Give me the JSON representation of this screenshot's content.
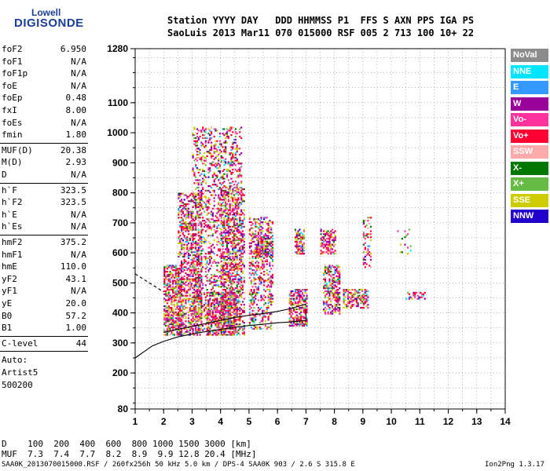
{
  "logo": {
    "line1": "Lowell",
    "line2": "DIGISONDE"
  },
  "header": {
    "row1": "Station YYYY DAY   DDD HHMMSS P1  FFS S AXN PPS IGA PS",
    "row2": "SaoLuis 2013 Mar11 070 015000 RSF 005 2 713 100 10+ 22"
  },
  "params_group1": [
    {
      "name": "foF2",
      "value": "6.950"
    },
    {
      "name": "foF1",
      "value": "N/A"
    },
    {
      "name": "foF1p",
      "value": "N/A"
    },
    {
      "name": "foE",
      "value": "N/A"
    },
    {
      "name": "foEp",
      "value": "0.48"
    },
    {
      "name": "fxI",
      "value": "8.00"
    },
    {
      "name": "foEs",
      "value": "N/A"
    },
    {
      "name": "fmin",
      "value": "1.80"
    }
  ],
  "params_group2": [
    {
      "name": "MUF(D)",
      "value": "20.38"
    },
    {
      "name": "M(D)",
      "value": "2.93"
    },
    {
      "name": "D",
      "value": "N/A"
    }
  ],
  "params_group3": [
    {
      "name": "h`F",
      "value": "323.5"
    },
    {
      "name": "h`F2",
      "value": "323.5"
    },
    {
      "name": "h`E",
      "value": "N/A"
    },
    {
      "name": "h`Es",
      "value": "N/A"
    }
  ],
  "params_group4": [
    {
      "name": "hmF2",
      "value": "375.2"
    },
    {
      "name": "hmF1",
      "value": "N/A"
    },
    {
      "name": "hmE",
      "value": "110.0"
    },
    {
      "name": "yF2",
      "value": "43.1"
    },
    {
      "name": "yF1",
      "value": "N/A"
    },
    {
      "name": "yE",
      "value": "20.0"
    },
    {
      "name": "B0",
      "value": "57.2"
    },
    {
      "name": "B1",
      "value": "1.00"
    }
  ],
  "clevel": {
    "name": "C-level",
    "value": "44"
  },
  "autoscale": {
    "line1": "Auto:",
    "line2": "Artist5",
    "line3": "500200"
  },
  "legend": [
    {
      "label": "NoVal",
      "color": "#8c8c8c"
    },
    {
      "label": "NNE",
      "color": "#00e5ff"
    },
    {
      "label": "E",
      "color": "#3399ff"
    },
    {
      "label": "W",
      "color": "#990099"
    },
    {
      "label": "Vo-",
      "color": "#ff3399"
    },
    {
      "label": "Vo+",
      "color": "#ff0033"
    },
    {
      "label": "SSW",
      "color": "#ffaaaa"
    },
    {
      "label": "X-",
      "color": "#007700"
    },
    {
      "label": "X+",
      "color": "#66bb44"
    },
    {
      "label": "SSE",
      "color": "#cccc00"
    },
    {
      "label": "NNW",
      "color": "#2200cc"
    }
  ],
  "footer": {
    "d_line": "D    100  200  400  600  800 1000 1500 3000 [km]",
    "muf_line": "MUF  7.3  7.4  7.7  8.2  8.9  9.9 12.8 20.4 [MHz]",
    "file_line": "SAA0K_2013070015000.RSF / 260fx256h 50 kHz 5.0 km / DPS-4 SAA0K 903 / 2.6 S 315.8 E",
    "version": "Ion2Png 1.3.17"
  },
  "chart_data": {
    "type": "scatter",
    "xlim": [
      1,
      14
    ],
    "ylim": [
      80,
      1280
    ],
    "x_ticks": [
      1,
      2,
      3,
      4,
      5,
      6,
      7,
      8,
      9,
      10,
      11,
      12,
      13,
      14
    ],
    "y_ticks": [
      80,
      200,
      300,
      400,
      500,
      600,
      700,
      800,
      900,
      1000,
      1100,
      1280
    ],
    "grid": true,
    "legend_position": "right",
    "clusters": [
      {
        "x": [
          2.0,
          2.6
        ],
        "y": [
          330,
          560
        ],
        "density": 0.55
      },
      {
        "x": [
          2.5,
          3.3
        ],
        "y": [
          330,
          800
        ],
        "density": 0.45
      },
      {
        "x": [
          2.6,
          3.1
        ],
        "y": [
          680,
          700
        ],
        "density": 0.7
      },
      {
        "x": [
          3.0,
          4.7
        ],
        "y": [
          340,
          1020
        ],
        "density": 0.28
      },
      {
        "x": [
          3.5,
          4.5
        ],
        "y": [
          330,
          470
        ],
        "density": 0.55
      },
      {
        "x": [
          4.0,
          4.8
        ],
        "y": [
          330,
          820
        ],
        "density": 0.35
      },
      {
        "x": [
          5.0,
          5.8
        ],
        "y": [
          350,
          720
        ],
        "density": 0.35
      },
      {
        "x": [
          5.2,
          5.8
        ],
        "y": [
          590,
          660
        ],
        "density": 0.6
      },
      {
        "x": [
          6.4,
          7.0
        ],
        "y": [
          360,
          480
        ],
        "density": 0.6
      },
      {
        "x": [
          6.6,
          6.9
        ],
        "y": [
          600,
          680
        ],
        "density": 0.55
      },
      {
        "x": [
          7.6,
          8.2
        ],
        "y": [
          400,
          560
        ],
        "density": 0.55
      },
      {
        "x": [
          7.5,
          8.0
        ],
        "y": [
          600,
          680
        ],
        "density": 0.55
      },
      {
        "x": [
          8.3,
          9.2
        ],
        "y": [
          420,
          480
        ],
        "density": 0.55
      },
      {
        "x": [
          9.0,
          9.3
        ],
        "y": [
          550,
          720
        ],
        "density": 0.25
      },
      {
        "x": [
          10.5,
          11.2
        ],
        "y": [
          450,
          470
        ],
        "density": 0.4
      },
      {
        "x": [
          10.2,
          10.7
        ],
        "y": [
          580,
          680
        ],
        "density": 0.12
      }
    ],
    "profile_line": {
      "x": [
        1.0,
        1.3,
        1.6,
        2.0,
        2.5,
        3.0,
        3.5,
        4.0,
        4.5,
        5.0,
        5.5,
        6.0,
        6.5,
        7.0,
        7.0
      ],
      "y": [
        250,
        270,
        290,
        305,
        320,
        330,
        338,
        345,
        352,
        358,
        362,
        367,
        370,
        375,
        410
      ]
    },
    "virtual_height_line": {
      "x": [
        2.0,
        2.5,
        3.0,
        3.5,
        4.0,
        4.5,
        5.0,
        5.5,
        6.0,
        6.5,
        7.0
      ],
      "y": [
        335,
        345,
        355,
        365,
        375,
        385,
        392,
        398,
        405,
        415,
        430
      ]
    },
    "extrapolation_line": {
      "x": [
        1.0,
        1.5,
        2.0
      ],
      "y": [
        530,
        500,
        470
      ]
    }
  }
}
